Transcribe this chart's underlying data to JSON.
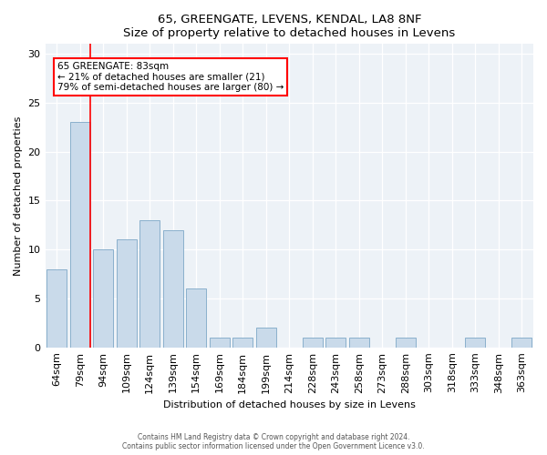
{
  "title1": "65, GREENGATE, LEVENS, KENDAL, LA8 8NF",
  "title2": "Size of property relative to detached houses in Levens",
  "xlabel": "Distribution of detached houses by size in Levens",
  "ylabel": "Number of detached properties",
  "categories": [
    "64sqm",
    "79sqm",
    "94sqm",
    "109sqm",
    "124sqm",
    "139sqm",
    "154sqm",
    "169sqm",
    "184sqm",
    "199sqm",
    "214sqm",
    "228sqm",
    "243sqm",
    "258sqm",
    "273sqm",
    "288sqm",
    "303sqm",
    "318sqm",
    "333sqm",
    "348sqm",
    "363sqm"
  ],
  "values": [
    8,
    23,
    10,
    11,
    13,
    12,
    6,
    1,
    1,
    2,
    0,
    1,
    1,
    1,
    0,
    1,
    0,
    0,
    1,
    0,
    1
  ],
  "bar_color": "#c9daea",
  "bar_edge_color": "#8ab0cc",
  "annotation_box_text": "65 GREENGATE: 83sqm\n← 21% of detached houses are smaller (21)\n79% of semi-detached houses are larger (80) →",
  "vline_bar_index": 1,
  "ylim": [
    0,
    31
  ],
  "yticks": [
    0,
    5,
    10,
    15,
    20,
    25,
    30
  ],
  "bg_color": "#edf2f7",
  "footer1": "Contains HM Land Registry data © Crown copyright and database right 2024.",
  "footer2": "Contains public sector information licensed under the Open Government Licence v3.0."
}
